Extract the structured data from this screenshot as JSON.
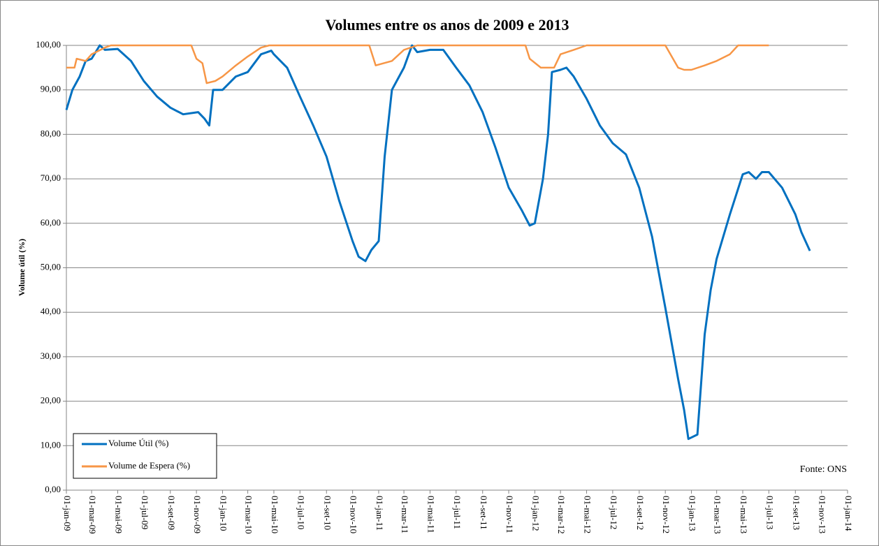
{
  "chart_data": {
    "type": "line",
    "title": "Volumes entre os anos de 2009 e 2013",
    "y_label": "Volume útil (%)",
    "annotation": "Fonte: ONS",
    "grid": true,
    "legend": "lower left",
    "ylim": [
      0,
      100
    ],
    "yticks": [
      {
        "value": 0,
        "label": "0,00"
      },
      {
        "value": 10,
        "label": "10,00"
      },
      {
        "value": 20,
        "label": "20,00"
      },
      {
        "value": 30,
        "label": "30,00"
      },
      {
        "value": 40,
        "label": "40,00"
      },
      {
        "value": 50,
        "label": "50,00"
      },
      {
        "value": 60,
        "label": "60,00"
      },
      {
        "value": 70,
        "label": "70,00"
      },
      {
        "value": 80,
        "label": "80,00"
      },
      {
        "value": 90,
        "label": "90,00"
      },
      {
        "value": 100,
        "label": "100,00"
      }
    ],
    "xlim": [
      "2009-01-01",
      "2014-01-01"
    ],
    "xticks": [
      {
        "value": "2009-01-01",
        "label": "01-jan-09"
      },
      {
        "value": "2009-03-01",
        "label": "01-mar-09"
      },
      {
        "value": "2009-05-01",
        "label": "01-mai-09"
      },
      {
        "value": "2009-07-01",
        "label": "01-jul-09"
      },
      {
        "value": "2009-09-01",
        "label": "01-set-09"
      },
      {
        "value": "2009-11-01",
        "label": "01-nov-09"
      },
      {
        "value": "2010-01-01",
        "label": "01-jan-10"
      },
      {
        "value": "2010-03-01",
        "label": "01-mar-10"
      },
      {
        "value": "2010-05-01",
        "label": "01-mai-10"
      },
      {
        "value": "2010-07-01",
        "label": "01-jul-10"
      },
      {
        "value": "2010-09-01",
        "label": "01-set-10"
      },
      {
        "value": "2010-11-01",
        "label": "01-nov-10"
      },
      {
        "value": "2011-01-01",
        "label": "01-jan-11"
      },
      {
        "value": "2011-03-01",
        "label": "01-mar-11"
      },
      {
        "value": "2011-05-01",
        "label": "01-mai-11"
      },
      {
        "value": "2011-07-01",
        "label": "01-jul-11"
      },
      {
        "value": "2011-09-01",
        "label": "01-set-11"
      },
      {
        "value": "2011-11-01",
        "label": "01-nov-11"
      },
      {
        "value": "2012-01-01",
        "label": "01-jan-12"
      },
      {
        "value": "2012-03-01",
        "label": "01-mar-12"
      },
      {
        "value": "2012-05-01",
        "label": "01-mai-12"
      },
      {
        "value": "2012-07-01",
        "label": "01-jul-12"
      },
      {
        "value": "2012-09-01",
        "label": "01-set-12"
      },
      {
        "value": "2012-11-01",
        "label": "01-nov-12"
      },
      {
        "value": "2013-01-01",
        "label": "01-jan-13"
      },
      {
        "value": "2013-03-01",
        "label": "01-mar-13"
      },
      {
        "value": "2013-05-01",
        "label": "01-mai-13"
      },
      {
        "value": "2013-07-01",
        "label": "01-jul-13"
      },
      {
        "value": "2013-09-01",
        "label": "01-set-13"
      },
      {
        "value": "2013-11-01",
        "label": "01-nov-13"
      },
      {
        "value": "2014-01-01",
        "label": "01-jan-14"
      }
    ],
    "series": [
      {
        "name": "Volume Útil (%)",
        "color": "#0070c0",
        "x": [
          "2009-01-01",
          "2009-01-15",
          "2009-02-01",
          "2009-02-15",
          "2009-03-01",
          "2009-03-20",
          "2009-04-01",
          "2009-05-01",
          "2009-06-01",
          "2009-07-01",
          "2009-08-01",
          "2009-09-01",
          "2009-10-01",
          "2009-11-05",
          "2009-11-20",
          "2009-12-01",
          "2009-12-10",
          "2010-01-01",
          "2010-02-01",
          "2010-03-01",
          "2010-04-01",
          "2010-04-25",
          "2010-05-01",
          "2010-06-01",
          "2010-07-01",
          "2010-08-01",
          "2010-09-01",
          "2010-10-01",
          "2010-11-01",
          "2010-11-15",
          "2010-12-01",
          "2010-12-15",
          "2011-01-01",
          "2011-01-15",
          "2011-02-01",
          "2011-03-01",
          "2011-03-20",
          "2011-04-01",
          "2011-05-01",
          "2011-06-01",
          "2011-07-01",
          "2011-08-01",
          "2011-09-01",
          "2011-10-01",
          "2011-11-01",
          "2011-12-01",
          "2011-12-20",
          "2012-01-01",
          "2012-01-20",
          "2012-02-01",
          "2012-02-10",
          "2012-03-01",
          "2012-03-15",
          "2012-04-01",
          "2012-05-01",
          "2012-06-01",
          "2012-07-01",
          "2012-08-01",
          "2012-09-01",
          "2012-10-01",
          "2012-11-01",
          "2012-12-01",
          "2012-12-15",
          "2012-12-25",
          "2013-01-15",
          "2013-02-01",
          "2013-02-15",
          "2013-03-01",
          "2013-04-01",
          "2013-05-01",
          "2013-05-15",
          "2013-06-01",
          "2013-06-15",
          "2013-07-01",
          "2013-08-01",
          "2013-09-01",
          "2013-09-15",
          "2013-10-05"
        ],
        "values": [
          85.5,
          90,
          93,
          96.5,
          97,
          100,
          99,
          99.2,
          96.5,
          92,
          88.5,
          86,
          84.5,
          85,
          83.5,
          82,
          90,
          90,
          93,
          94,
          98,
          98.8,
          98,
          95,
          88.5,
          82,
          75,
          65,
          56,
          52.5,
          51.5,
          54,
          56,
          75,
          90,
          95,
          100,
          98.5,
          99,
          99,
          95,
          91,
          85,
          77,
          68,
          63,
          59.5,
          60,
          70,
          80,
          94,
          94.5,
          95,
          93,
          88,
          82,
          78,
          75.5,
          68,
          57,
          41,
          25,
          18,
          11.5,
          12.5,
          35,
          45,
          52,
          62,
          71,
          71.5,
          70,
          71.5,
          71.5,
          68,
          62,
          58,
          53.8
        ]
      },
      {
        "name": "Volume de Espera (%)",
        "color": "#f79646",
        "x": [
          "2009-01-01",
          "2009-01-20",
          "2009-01-25",
          "2009-02-15",
          "2009-03-01",
          "2009-04-01",
          "2009-04-15",
          "2009-10-20",
          "2009-11-01",
          "2009-11-15",
          "2009-11-25",
          "2009-12-15",
          "2010-01-01",
          "2010-02-01",
          "2010-03-01",
          "2010-04-01",
          "2010-04-20",
          "2010-12-10",
          "2010-12-25",
          "2011-02-01",
          "2011-03-01",
          "2011-04-01",
          "2011-12-10",
          "2011-12-20",
          "2012-01-15",
          "2012-02-15",
          "2012-03-01",
          "2012-04-01",
          "2012-05-01",
          "2012-11-01",
          "2012-12-01",
          "2012-12-15",
          "2013-01-01",
          "2013-02-01",
          "2013-03-01",
          "2013-04-01",
          "2013-04-20",
          "2013-07-01"
        ],
        "values": [
          95,
          95,
          97,
          96.5,
          98,
          99.5,
          100,
          100,
          97,
          96,
          91.5,
          92,
          93,
          95.5,
          97.5,
          99.5,
          100,
          100,
          95.5,
          96.5,
          99,
          100,
          100,
          97,
          95,
          95,
          98,
          99,
          100,
          100,
          95,
          94.5,
          94.5,
          95.5,
          96.5,
          98,
          100,
          100
        ]
      }
    ]
  }
}
